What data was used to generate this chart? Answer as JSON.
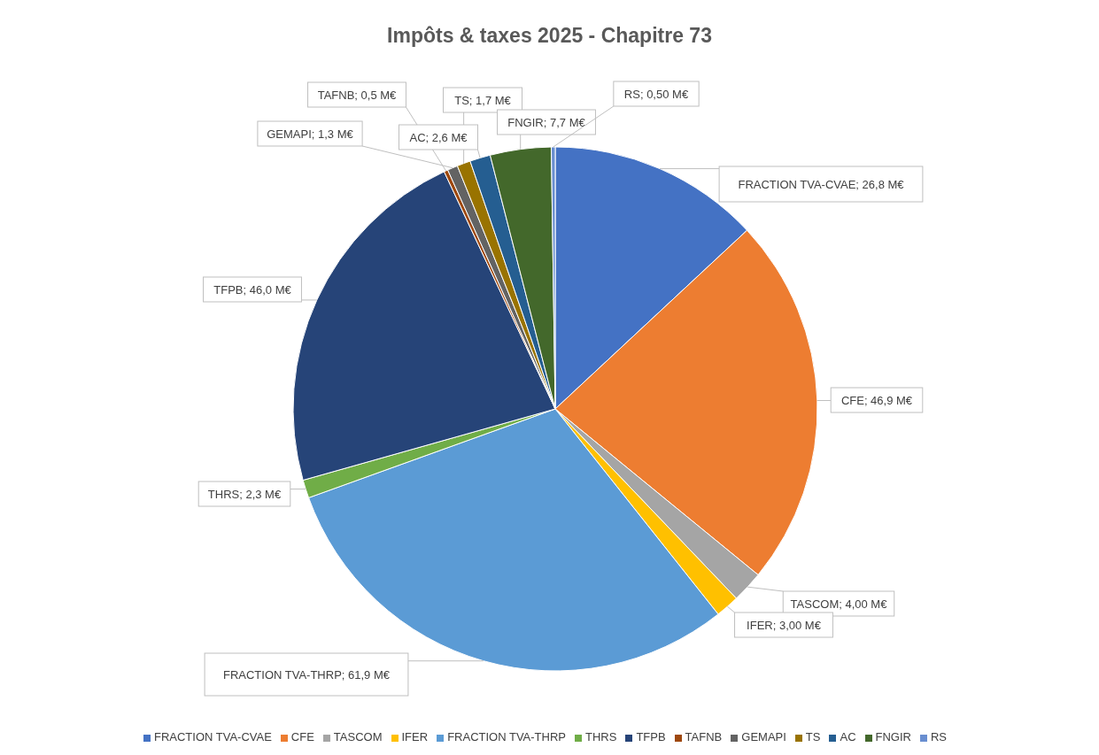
{
  "chart_data": {
    "type": "pie",
    "title": "Impôts & taxes 2025 - Chapitre 73",
    "categories": [
      "FRACTION TVA-CVAE",
      "CFE",
      "TASCOM",
      "IFER",
      "FRACTION TVA-THRP",
      "THRS",
      "TFPB",
      "TAFNB",
      "GEMAPI",
      "TS",
      "AC",
      "FNGIR",
      "RS"
    ],
    "values": [
      26.8,
      46.9,
      4.0,
      3.0,
      61.9,
      2.3,
      46.0,
      0.5,
      1.3,
      1.7,
      2.6,
      7.7,
      0.5
    ],
    "value_labels": [
      "FRACTION TVA-CVAE; 26,8 M€",
      "CFE; 46,9 M€",
      "TASCOM; 4,00 M€",
      "IFER; 3,00 M€",
      "FRACTION TVA-THRP; 61,9 M€",
      "THRS; 2,3 M€",
      "TFPB; 46,0 M€",
      "TAFNB; 0,5 M€",
      "GEMAPI; 1,3 M€",
      "TS; 1,7 M€",
      "AC; 2,6 M€",
      "FNGIR; 7,7 M€",
      "RS; 0,50 M€"
    ],
    "colors": [
      "#4472c4",
      "#ed7d31",
      "#a5a5a5",
      "#ffc000",
      "#5b9bd5",
      "#70ad47",
      "#264478",
      "#9e480e",
      "#636363",
      "#997300",
      "#255e91",
      "#43682b",
      "#698ed0"
    ],
    "legend": "bottom"
  }
}
